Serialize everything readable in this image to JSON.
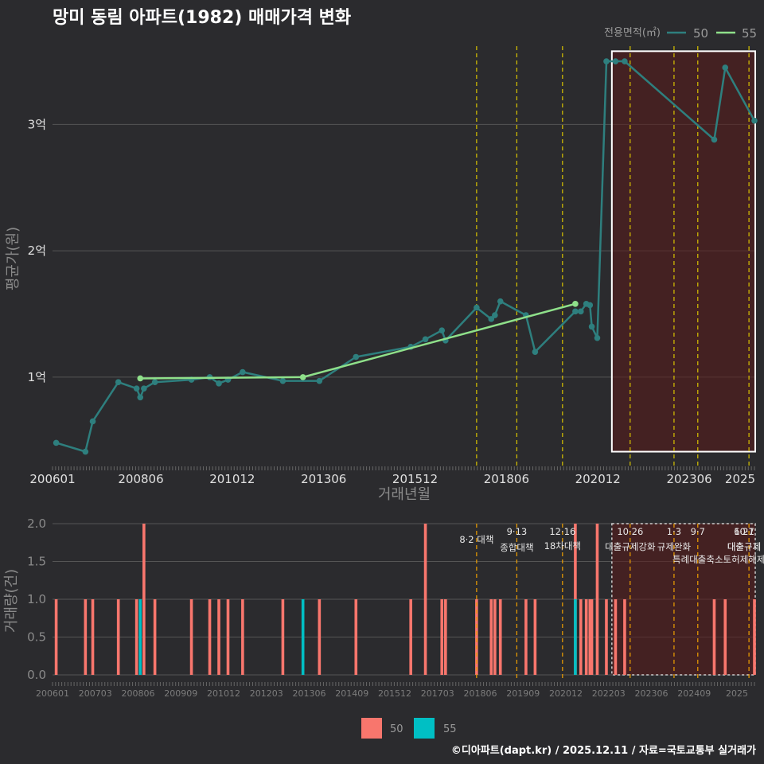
{
  "title": "망미 동림 아파트(1982) 매매가격 변화",
  "footer": "©디아파트(dapt.kr) / 2025.12.11 / 자료=국토교통부 실거래가",
  "colors": {
    "background": "#2b2b2e",
    "series50_line": "#2e7f7e",
    "series55_line": "#8fe08a",
    "bar50": "#f8766d",
    "bar55": "#00bfc4",
    "policy_line": "#d9c400",
    "highlight_fill": "#5a1a1a",
    "grid": "#555555"
  },
  "chart_data": [
    {
      "type": "line",
      "title": "망미 동림 아파트(1982) 매매가격 변화",
      "xlabel": "거래년월",
      "ylabel": "평균가(원)",
      "x_range": [
        2006.0,
        2025.2
      ],
      "ylim": [
        0.3,
        3.62
      ],
      "y_unit": "억",
      "xticks": [
        {
          "label": "200601",
          "value": 2006.0
        },
        {
          "label": "200806",
          "value": 2008.4167
        },
        {
          "label": "201012",
          "value": 2010.9167
        },
        {
          "label": "201306",
          "value": 2013.4167
        },
        {
          "label": "201512",
          "value": 2015.9167
        },
        {
          "label": "201806",
          "value": 2018.4167
        },
        {
          "label": "202012",
          "value": 2020.9167
        },
        {
          "label": "202306",
          "value": 2023.4167
        },
        {
          "label": "2025",
          "value": 2025.0
        }
      ],
      "yticks": [
        {
          "label": "1억",
          "value": 1.0
        },
        {
          "label": "2억",
          "value": 2.0
        },
        {
          "label": "3억",
          "value": 3.0
        }
      ],
      "legend_title": "전용면적(㎡)",
      "series": [
        {
          "name": "50",
          "color": "#2e7f7e",
          "x": [
            2006.1,
            2006.9,
            2007.1,
            2007.8,
            2008.3,
            2008.4,
            2008.5,
            2008.8,
            2009.8,
            2010.3,
            2010.55,
            2010.8,
            2011.2,
            2012.3,
            2013.3,
            2014.3,
            2015.8,
            2016.2,
            2016.65,
            2016.75,
            2017.6,
            2018.0,
            2018.1,
            2018.25,
            2018.95,
            2019.2,
            2020.3,
            2020.45,
            2020.6,
            2020.7,
            2020.75,
            2020.9,
            2021.15,
            2021.4,
            2021.65,
            2024.1,
            2024.4,
            2025.2
          ],
          "values": [
            0.48,
            0.41,
            0.65,
            0.96,
            0.91,
            0.84,
            0.91,
            0.96,
            0.98,
            1.0,
            0.95,
            0.98,
            1.04,
            0.97,
            0.97,
            1.16,
            1.24,
            1.3,
            1.37,
            1.29,
            1.55,
            1.46,
            1.49,
            1.6,
            1.49,
            1.2,
            1.52,
            1.52,
            1.58,
            1.57,
            1.4,
            1.31,
            3.5,
            3.5,
            3.5,
            2.88,
            3.45,
            3.03
          ]
        },
        {
          "name": "55",
          "color": "#8fe08a",
          "x": [
            2008.4,
            2012.85,
            2020.3
          ],
          "values": [
            0.99,
            1.0,
            1.58
          ]
        }
      ],
      "policy_lines": [
        2017.6,
        2018.7,
        2019.95,
        2021.8,
        2023.0,
        2023.65,
        2025.05,
        2025.4,
        2025.55,
        2025.85
      ],
      "highlight_box": {
        "x_start": 2021.3,
        "x_end": 2026.2,
        "y_low": 0.41,
        "y_high": 3.58
      }
    },
    {
      "type": "bar",
      "xlabel": "",
      "ylabel": "거래량(건)",
      "x_range": [
        2006.0,
        2025.2
      ],
      "ylim": [
        0,
        2.0
      ],
      "xticks": [
        "200601",
        "200703",
        "200806",
        "200909",
        "201012",
        "201203",
        "201306",
        "201409",
        "201512",
        "201703",
        "201806",
        "201909",
        "202012",
        "202203",
        "202306",
        "202409",
        "2025"
      ],
      "yticks": [
        "0.0",
        "0.5",
        "1.0",
        "1.5",
        "2.0"
      ],
      "legend": [
        "50",
        "55"
      ],
      "series": [
        {
          "name": "50",
          "color": "#f8766d",
          "x": [
            2006.1,
            2006.9,
            2007.1,
            2007.8,
            2008.3,
            2008.5,
            2008.8,
            2009.8,
            2010.3,
            2010.55,
            2010.8,
            2011.2,
            2012.3,
            2013.3,
            2014.3,
            2015.8,
            2016.2,
            2016.65,
            2016.75,
            2017.6,
            2018.0,
            2018.1,
            2018.25,
            2018.95,
            2019.2,
            2020.3,
            2020.45,
            2020.6,
            2020.7,
            2020.75,
            2020.9,
            2021.15,
            2021.4,
            2021.65,
            2024.1,
            2024.4,
            2025.2
          ],
          "values": [
            1,
            1,
            1,
            1,
            1,
            2,
            1,
            1,
            1,
            1,
            1,
            1,
            1,
            1,
            1,
            1,
            2,
            1,
            1,
            1,
            1,
            1,
            1,
            1,
            1,
            2,
            1,
            1,
            1,
            1,
            2,
            1,
            1,
            1,
            1,
            1,
            1
          ]
        },
        {
          "name": "55",
          "color": "#00bfc4",
          "x": [
            2008.4,
            2012.85,
            2020.3
          ],
          "values": [
            1,
            1,
            1
          ]
        }
      ],
      "annotations": [
        {
          "x": 2017.6,
          "date": "",
          "text": "8·2 대책"
        },
        {
          "x": 2018.7,
          "date": "9·13",
          "text": "종합대책"
        },
        {
          "x": 2019.95,
          "date": "12·16",
          "text": "18차대책"
        },
        {
          "x": 2021.8,
          "date": "10·26",
          "text": "대출규제강화"
        },
        {
          "x": 2023.0,
          "date": "1·3",
          "text": "규제완화"
        },
        {
          "x": 2023.65,
          "date": "9·7",
          "text": "특례대출축소"
        },
        {
          "x": 2025.05,
          "date": "",
          "text": "토허제해제"
        },
        {
          "x": 2025.4,
          "date": "6·27",
          "text": "대출규제"
        },
        {
          "x": 2025.55,
          "date": "10·1",
          "text": "대출규제"
        },
        {
          "x": 2025.85,
          "date": "",
          "text": ""
        }
      ]
    }
  ]
}
